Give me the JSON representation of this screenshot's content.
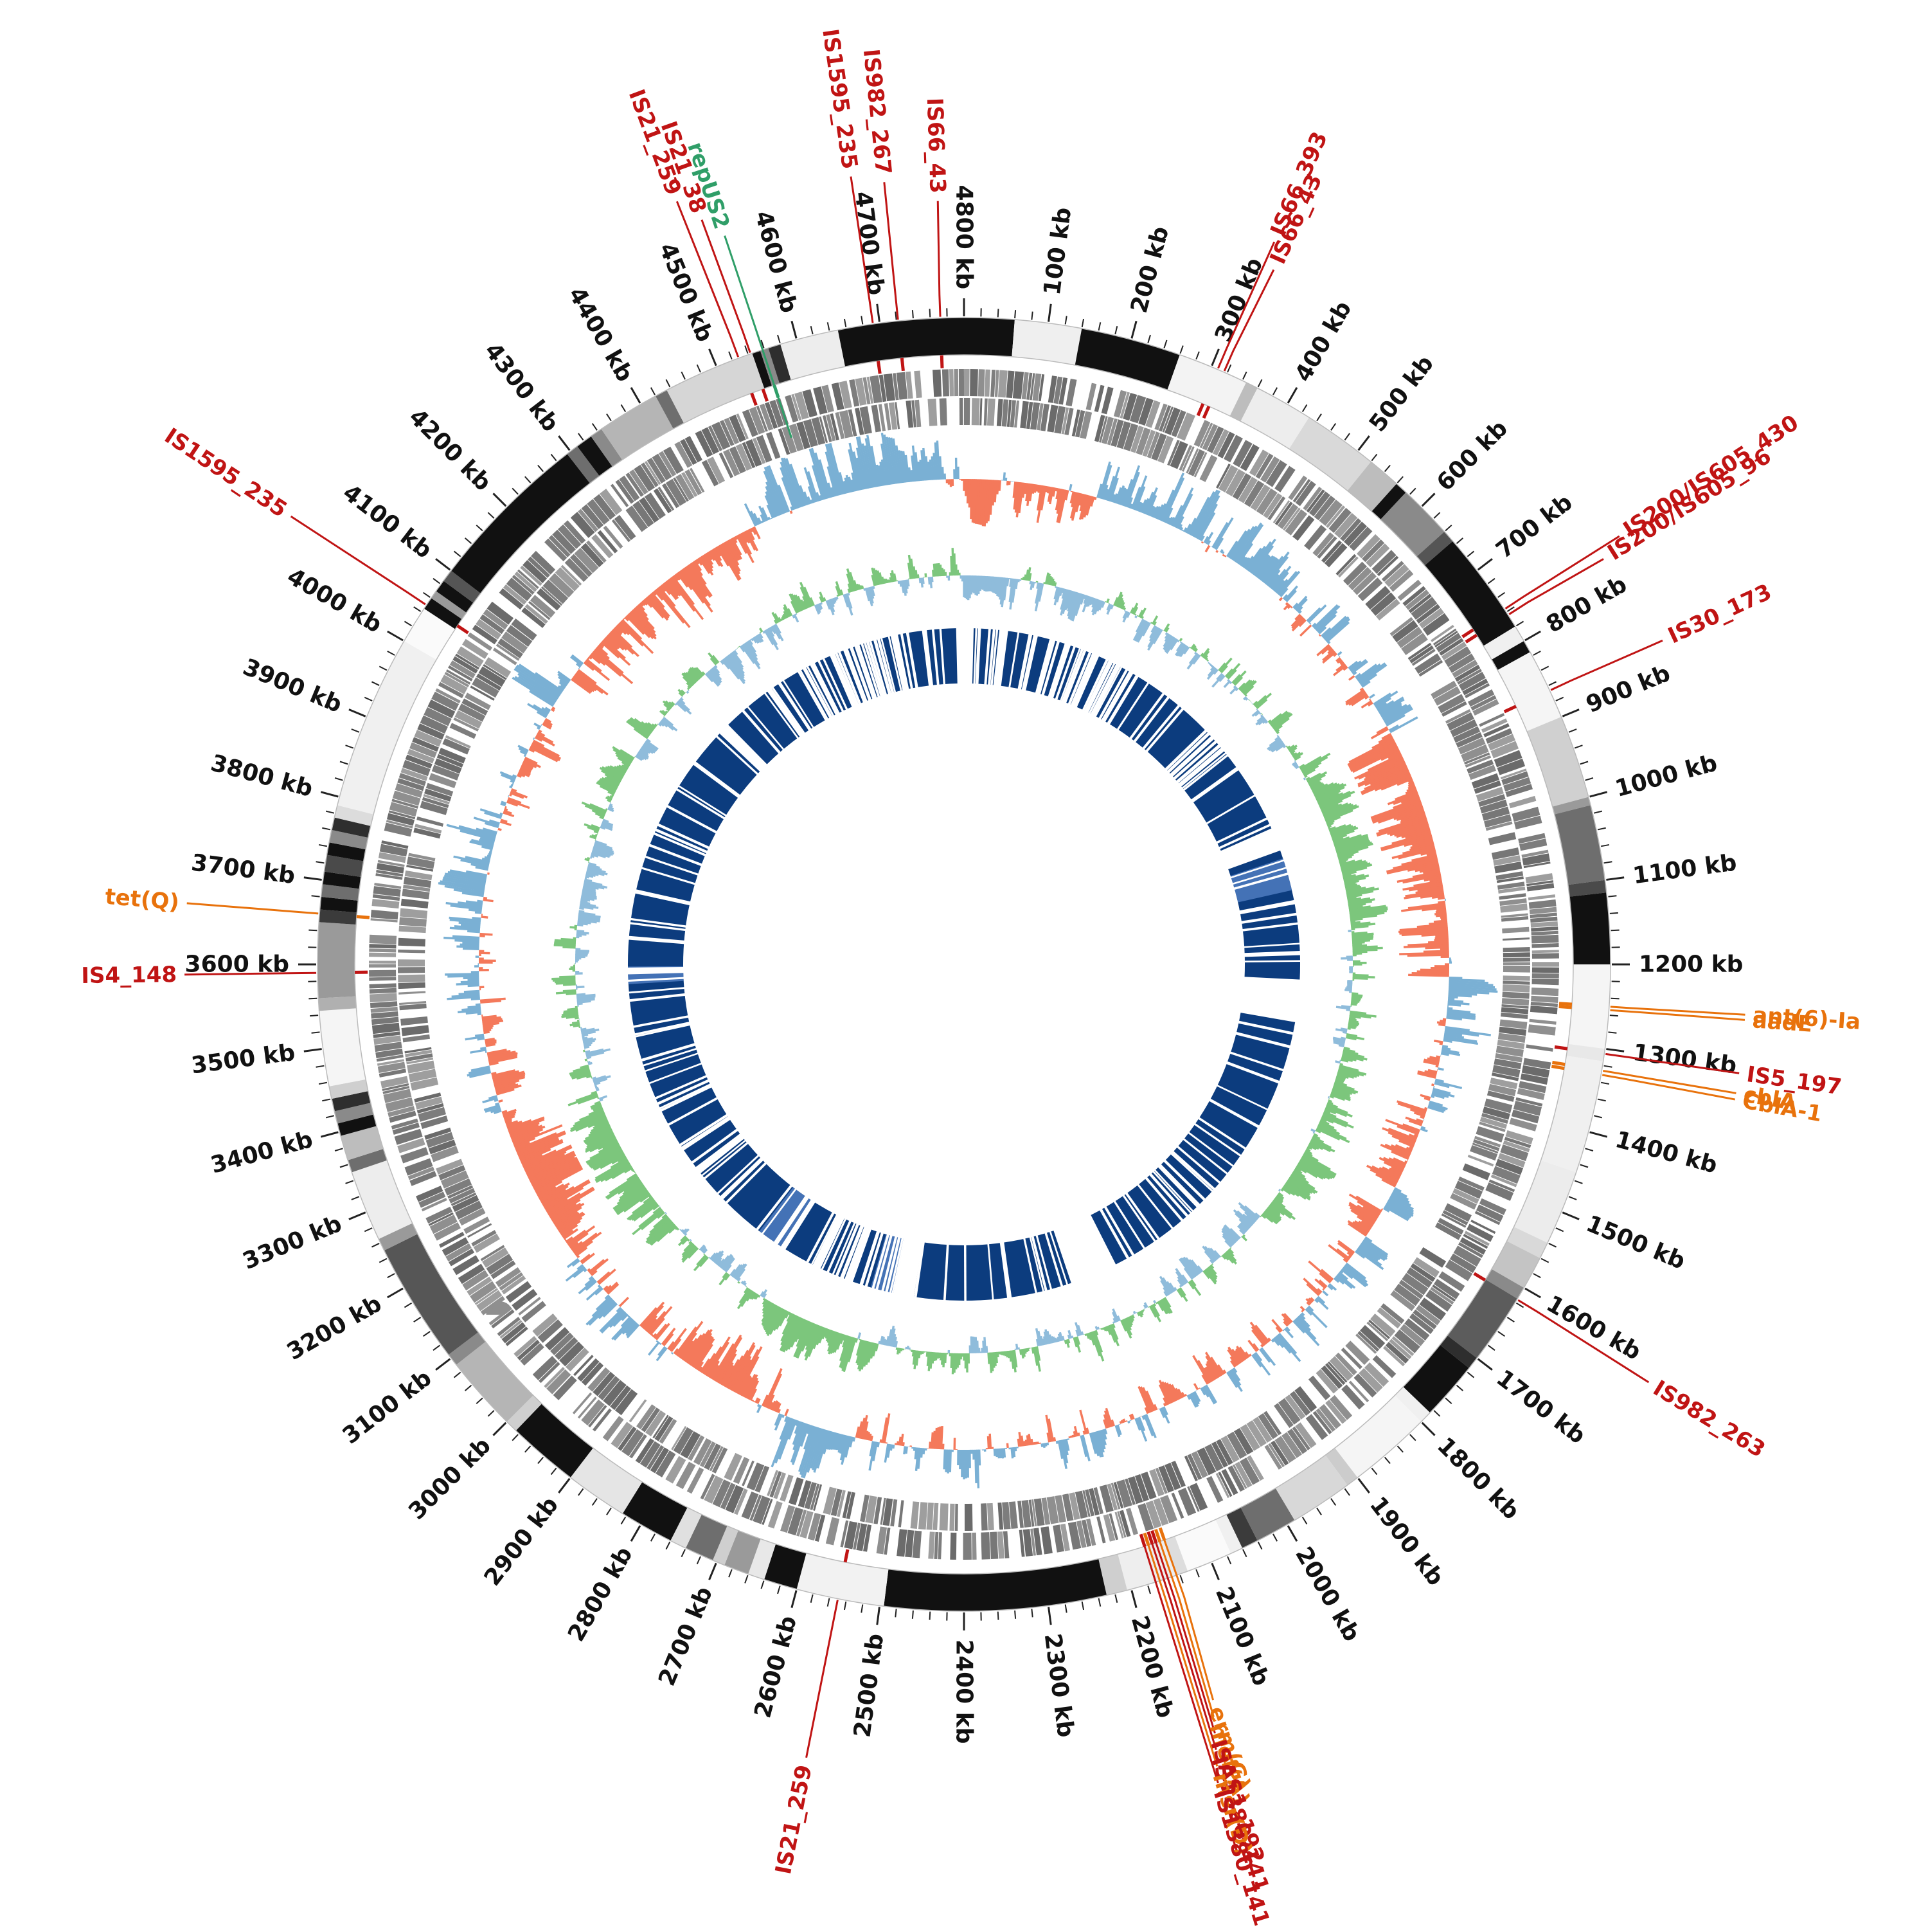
{
  "figure": {
    "name": "circular-genome-map",
    "unit": "kb"
  },
  "chart_data": {
    "type": "circos",
    "total_kb": 4800,
    "tick_major_kb": 100,
    "tick_minor_kb": 20,
    "tick_labels": [
      "100 kb",
      "200 kb",
      "300 kb",
      "400 kb",
      "500 kb",
      "600 kb",
      "700 kb",
      "800 kb",
      "900 kb",
      "1000 kb",
      "1100 kb",
      "1200 kb",
      "1300 kb",
      "1400 kb",
      "1500 kb",
      "1600 kb",
      "1700 kb",
      "1800 kb",
      "1900 kb",
      "2000 kb",
      "2100 kb",
      "2200 kb",
      "2300 kb",
      "2400 kb",
      "2500 kb",
      "2600 kb",
      "2700 kb",
      "2800 kb",
      "2900 kb",
      "3000 kb",
      "3100 kb",
      "3200 kb",
      "3300 kb",
      "3400 kb",
      "3500 kb",
      "3600 kb",
      "3700 kb",
      "3800 kb",
      "3900 kb",
      "4000 kb",
      "4100 kb",
      "4200 kb",
      "4300 kb",
      "4400 kb",
      "4500 kb",
      "4600 kb",
      "4700 kb",
      "4800 kb"
    ],
    "rings": [
      {
        "name": "contigs",
        "type": "segments",
        "r_inner": 948,
        "r_outer": 1006
      },
      {
        "name": "genes-forward",
        "type": "blocks",
        "r_mid": 905,
        "thickness": 42
      },
      {
        "name": "genes-reverse",
        "type": "blocks",
        "r_mid": 860,
        "thickness": 42
      },
      {
        "name": "gc-content",
        "type": "histogram",
        "baseline_r": 755,
        "amplitude": 82,
        "pos_color": "#7ab0d4",
        "neg_color": "#f4795b"
      },
      {
        "name": "gc-skew",
        "type": "histogram",
        "baseline_r": 605,
        "amplitude": 60,
        "pos_color": "#7cc67c",
        "neg_color": "#8fbcdb"
      },
      {
        "name": "alignment",
        "type": "blocks",
        "r_mid": 480,
        "thickness": 86,
        "color": "#0c3c7e"
      }
    ],
    "outer_segments": [
      [
        0,
        60,
        "#111111"
      ],
      [
        60,
        140,
        "#efefef"
      ],
      [
        140,
        260,
        "#111111"
      ],
      [
        260,
        345,
        "#f3f3f3"
      ],
      [
        345,
        360,
        "#bdbdbd"
      ],
      [
        360,
        430,
        "#ededed"
      ],
      [
        430,
        520,
        "#d9d9d9"
      ],
      [
        520,
        560,
        "#bdbdbd"
      ],
      [
        560,
        575,
        "#111111"
      ],
      [
        575,
        640,
        "#8a8a8a"
      ],
      [
        640,
        655,
        "#555555"
      ],
      [
        655,
        780,
        "#111111"
      ],
      [
        780,
        800,
        "#f0f0f0"
      ],
      [
        800,
        815,
        "#111111"
      ],
      [
        815,
        900,
        "#f5f5f5"
      ],
      [
        900,
        1000,
        "#d0d0d0"
      ],
      [
        1000,
        1010,
        "#9a9a9a"
      ],
      [
        1010,
        1100,
        "#6e6e6e"
      ],
      [
        1100,
        1115,
        "#4a4a4a"
      ],
      [
        1115,
        1200,
        "#111111"
      ],
      [
        1200,
        1300,
        "#f5f5f5"
      ],
      [
        1300,
        1315,
        "#e8e8e8"
      ],
      [
        1315,
        1450,
        "#f0f0f0"
      ],
      [
        1450,
        1540,
        "#ececec"
      ],
      [
        1540,
        1560,
        "#d9d9d9"
      ],
      [
        1560,
        1600,
        "#c4c4c4"
      ],
      [
        1600,
        1615,
        "#8a8a8a"
      ],
      [
        1615,
        1700,
        "#5c5c5c"
      ],
      [
        1700,
        1715,
        "#2e2e2e"
      ],
      [
        1715,
        1785,
        "#111111"
      ],
      [
        1785,
        1800,
        "#f0f0f0"
      ],
      [
        1800,
        1900,
        "#f5f5f5"
      ],
      [
        1900,
        1915,
        "#cccccc"
      ],
      [
        1915,
        1990,
        "#d8d8d8"
      ],
      [
        1990,
        2040,
        "#6e6e6e"
      ],
      [
        2040,
        2060,
        "#3b3b3b"
      ],
      [
        2060,
        2075,
        "#f0f0f0"
      ],
      [
        2075,
        2130,
        "#fafafa"
      ],
      [
        2130,
        2145,
        "#dddddd"
      ],
      [
        2145,
        2205,
        "#eeeeee"
      ],
      [
        2205,
        2230,
        "#cfcfcf"
      ],
      [
        2230,
        2495,
        "#111111"
      ],
      [
        2495,
        2600,
        "#f2f2f2"
      ],
      [
        2600,
        2640,
        "#111111"
      ],
      [
        2640,
        2660,
        "#e8e8e8"
      ],
      [
        2660,
        2690,
        "#9a9a9a"
      ],
      [
        2690,
        2705,
        "#cfcfcf"
      ],
      [
        2705,
        2740,
        "#6e6e6e"
      ],
      [
        2740,
        2760,
        "#e0e0e0"
      ],
      [
        2760,
        2825,
        "#111111"
      ],
      [
        2825,
        2900,
        "#e5e5e5"
      ],
      [
        2900,
        2985,
        "#111111"
      ],
      [
        2985,
        3000,
        "#cfcfcf"
      ],
      [
        3000,
        3090,
        "#b5b5b5"
      ],
      [
        3090,
        3105,
        "#8a8a8a"
      ],
      [
        3105,
        3250,
        "#565656"
      ],
      [
        3250,
        3265,
        "#9a9a9a"
      ],
      [
        3265,
        3350,
        "#ededed"
      ],
      [
        3350,
        3365,
        "#6e6e6e"
      ],
      [
        3365,
        3395,
        "#bdbdbd"
      ],
      [
        3395,
        3410,
        "#111111"
      ],
      [
        3410,
        3425,
        "#8a8a8a"
      ],
      [
        3425,
        3440,
        "#2e2e2e"
      ],
      [
        3440,
        3455,
        "#cfcfcf"
      ],
      [
        3455,
        3545,
        "#f5f5f5"
      ],
      [
        3545,
        3560,
        "#b0b0b0"
      ],
      [
        3560,
        3650,
        "#9a9a9a"
      ],
      [
        3650,
        3665,
        "#3b3b3b"
      ],
      [
        3665,
        3680,
        "#111111"
      ],
      [
        3680,
        3695,
        "#6e6e6e"
      ],
      [
        3695,
        3710,
        "#111111"
      ],
      [
        3710,
        3730,
        "#4a4a4a"
      ],
      [
        3730,
        3745,
        "#111111"
      ],
      [
        3745,
        3760,
        "#8a8a8a"
      ],
      [
        3760,
        3775,
        "#2e2e2e"
      ],
      [
        3775,
        3790,
        "#dcdcdc"
      ],
      [
        3790,
        4000,
        "#f0f0f0"
      ],
      [
        4000,
        4045,
        "#fafafa"
      ],
      [
        4045,
        4060,
        "#111111"
      ],
      [
        4060,
        4070,
        "#9a9a9a"
      ],
      [
        4070,
        4085,
        "#111111"
      ],
      [
        4085,
        4100,
        "#555555"
      ],
      [
        4100,
        4295,
        "#111111"
      ],
      [
        4295,
        4310,
        "#6e6e6e"
      ],
      [
        4310,
        4330,
        "#111111"
      ],
      [
        4330,
        4345,
        "#8a8a8a"
      ],
      [
        4345,
        4420,
        "#b5b5b5"
      ],
      [
        4420,
        4435,
        "#6e6e6e"
      ],
      [
        4435,
        4545,
        "#d6d6d6"
      ],
      [
        4545,
        4555,
        "#111111"
      ],
      [
        4555,
        4565,
        "#8a8a8a"
      ],
      [
        4565,
        4580,
        "#2e2e2e"
      ],
      [
        4580,
        4650,
        "#ededed"
      ],
      [
        4650,
        4800,
        "#111111"
      ]
    ],
    "alignment_blocks": [
      [
        18,
        882
      ],
      [
        936,
        1238
      ],
      [
        1332,
        2042
      ],
      [
        2152,
        2518
      ],
      [
        2562,
        3088
      ],
      [
        3106,
        4178
      ],
      [
        4206,
        4782
      ]
    ],
    "alignment_light_blocks": [
      [
        955,
        1030
      ],
      [
        2565,
        2615
      ],
      [
        2840,
        2900
      ],
      [
        3555,
        3595
      ]
    ],
    "slit_dense_ranges": [
      [
        30,
        420
      ],
      [
        620,
        720
      ],
      [
        2560,
        2760
      ],
      [
        4320,
        4700
      ]
    ],
    "gc_bias_regions": [
      [
        820,
        1220,
        -0.55
      ],
      [
        2680,
        2960,
        -0.5
      ],
      [
        3140,
        3310,
        -0.45
      ],
      [
        4080,
        4460,
        -0.6
      ],
      [
        1600,
        1800,
        -0.2
      ]
    ],
    "gc_default_bias": 0.18,
    "skew_bias_regions": [
      [
        2300,
        3400,
        0.35
      ],
      [
        1000,
        1600,
        0.25
      ],
      [
        4500,
        4800,
        -0.2
      ],
      [
        0,
        250,
        -0.15
      ]
    ],
    "skew_default_bias": 0.12,
    "annotations": [
      {
        "label": "IS66_393",
        "pos": 308,
        "color": "#c01414",
        "r": 1235,
        "dA": 2,
        "r0": 1008
      },
      {
        "label": "IS66_43",
        "pos": 316,
        "color": "#c01414",
        "r": 1195,
        "dA": 4.5,
        "r0": 1008
      },
      {
        "label": "IS200/IS605_430",
        "pos": 756,
        "color": "#c01414",
        "r": 1230,
        "dA": 2,
        "r0": 1008
      },
      {
        "label": "IS200/IS605_96",
        "pos": 764,
        "color": "#c01414",
        "r": 1190,
        "dA": 4.5,
        "r0": 1008
      },
      {
        "label": "IS30_173",
        "pos": 866,
        "color": "#c01414",
        "r": 1210,
        "dA": 2.5,
        "r0": 1008
      },
      {
        "label": "ant(6)-Ia",
        "pos": 1250,
        "color": "#e8720c",
        "r": 1230,
        "dA": -0.9,
        "r0": 1008
      },
      {
        "label": "aadE",
        "pos": 1254,
        "color": "#e8720c",
        "r": 1230,
        "dA": 0.2,
        "r0": 1008
      },
      {
        "label": "IS5_197",
        "pos": 1306,
        "color": "#c01414",
        "r": 1230,
        "dA": 0.5,
        "r0": 1008
      },
      {
        "label": "cblA",
        "pos": 1326,
        "color": "#e8720c",
        "r": 1230,
        "dA": 0.2,
        "r0": 1008
      },
      {
        "label": "CblA-1",
        "pos": 1331,
        "color": "#e8720c",
        "r": 1230,
        "dA": 1.4,
        "r0": 1008
      },
      {
        "label": "IS982_263",
        "pos": 1616,
        "color": "#c01414",
        "r": 1260,
        "dA": 2.5,
        "r0": 1008
      },
      {
        "label": "erm(G)",
        "pos": 2144,
        "color": "#e8720c",
        "r": 1220,
        "dA": 6.5,
        "r0": 930
      },
      {
        "label": "mef(A)",
        "pos": 2150,
        "color": "#e8720c",
        "r": 1245,
        "dA": 5.2,
        "r0": 930
      },
      {
        "label": "ISAS1_192",
        "pos": 2155,
        "color": "#c01414",
        "r": 1270,
        "dA": 3.9,
        "r0": 930
      },
      {
        "label": "IS1380_141",
        "pos": 2160,
        "color": "#c01414",
        "r": 1295,
        "dA": 2.6,
        "r0": 930
      },
      {
        "label": "msr(D)",
        "pos": 2165,
        "color": "#e8720c",
        "r": 1320,
        "dA": 1.3,
        "r0": 930
      },
      {
        "label": "IS1380_141",
        "pos": 2170,
        "color": "#c01414",
        "r": 1345,
        "dA": 0,
        "r0": 930
      },
      {
        "label": "IS21_259",
        "pos": 2550,
        "color": "#c01414",
        "r": 1270,
        "dA": 0,
        "r0": 1008
      },
      {
        "label": "IS4_148",
        "pos": 3590,
        "color": "#c01414",
        "r": 1225,
        "dA": 0,
        "r0": 1008
      },
      {
        "label": "tet(Q)",
        "pos": 3660,
        "color": "#e8720c",
        "r": 1225,
        "dA": 0,
        "r0": 1008
      },
      {
        "label": "IS1595_235",
        "pos": 4050,
        "color": "#c01414",
        "r": 1270,
        "dA": -1.5,
        "r0": 1008
      },
      {
        "label": "IS21_259",
        "pos": 4528,
        "color": "#c01414",
        "r": 1280,
        "dA": -3,
        "r0": 1008
      },
      {
        "label": "IS21_38",
        "pos": 4543,
        "color": "#c01414",
        "r": 1240,
        "dA": -1.8,
        "r0": 1008
      },
      {
        "label": "repUS2",
        "pos": 4558,
        "color": "#2f9e68",
        "r": 1205,
        "dA": -0.5,
        "r0": 862
      },
      {
        "label": "IS1595_235",
        "pos": 4692,
        "color": "#c01414",
        "r": 1250,
        "dA": -1,
        "r0": 1008
      },
      {
        "label": "IS982_267",
        "pos": 4722,
        "color": "#c01414",
        "r": 1235,
        "dA": 0.3,
        "r0": 1008
      },
      {
        "label": "IS66_43",
        "pos": 4772,
        "color": "#c01414",
        "r": 1200,
        "dA": 1.8,
        "r0": 1008
      }
    ]
  },
  "colors": {
    "tick": "#222222",
    "tick_label": "#111111",
    "gene_grays": [
      "#6b6b6b",
      "#7d7d7d",
      "#8f8f8f",
      "#9e9e9e",
      "#777777"
    ],
    "alignment": "#0c3c7e",
    "alignment_light": "#4a78bd",
    "background": "#ffffff"
  }
}
